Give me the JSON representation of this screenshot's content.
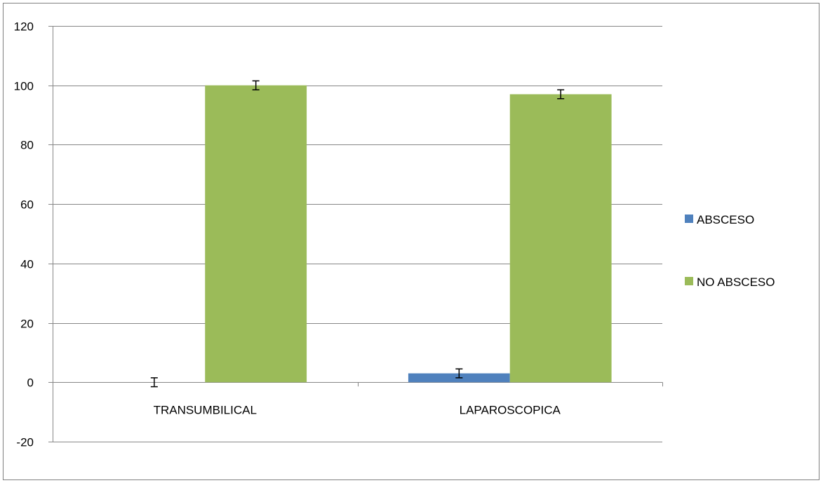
{
  "chart_data": {
    "type": "bar",
    "categories": [
      "TRANSUMBILICAL",
      "LAPAROSCOPICA"
    ],
    "series": [
      {
        "name": "ABSCESO",
        "values": [
          0,
          3
        ],
        "error": [
          1.5,
          1.5
        ],
        "color": "#4F81BD"
      },
      {
        "name": "NO ABSCESO",
        "values": [
          100,
          97
        ],
        "error": [
          1.5,
          1.5
        ],
        "color": "#9BBB59"
      }
    ],
    "ylim": [
      -20,
      120
    ],
    "yticks": [
      120,
      100,
      80,
      60,
      40,
      20,
      0,
      -20
    ],
    "grid": true,
    "legend": "right"
  }
}
